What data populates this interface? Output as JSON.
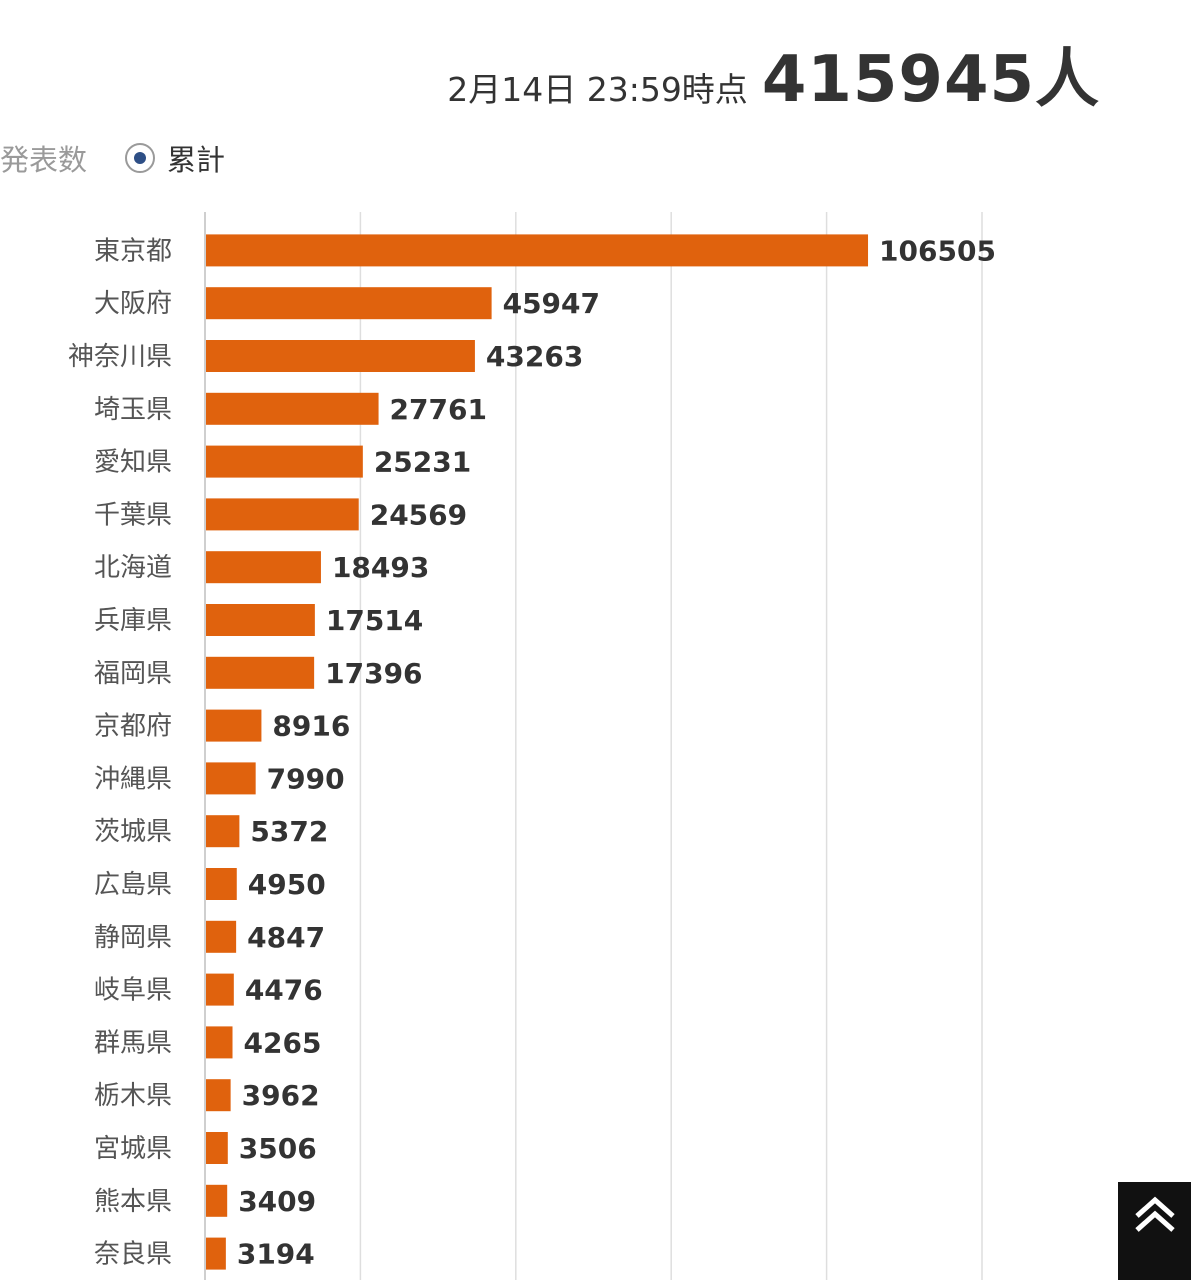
{
  "header": {
    "as_of": "2月14日 23:59時点",
    "total": "415945人"
  },
  "mode_toggle": {
    "option_announced": "発表数",
    "option_cumulative": "累計",
    "selected": "累計"
  },
  "colors": {
    "bar": "#e0620d",
    "grid": "#dedede",
    "text": "#333333"
  },
  "chart_data": {
    "type": "bar",
    "orientation": "horizontal",
    "categories": [
      "東京都",
      "大阪府",
      "神奈川県",
      "埼玉県",
      "愛知県",
      "千葉県",
      "北海道",
      "兵庫県",
      "福岡県",
      "京都府",
      "沖縄県",
      "茨城県",
      "広島県",
      "静岡県",
      "岐阜県",
      "群馬県",
      "栃木県",
      "宮城県",
      "熊本県",
      "奈良県"
    ],
    "values": [
      106505,
      45947,
      43263,
      27761,
      25231,
      24569,
      18493,
      17514,
      17396,
      8916,
      7990,
      5372,
      4950,
      4847,
      4476,
      4265,
      3962,
      3506,
      3409,
      3194
    ],
    "xlim": [
      0,
      125000
    ],
    "gridline_step": 25000,
    "grid": true,
    "data_labels": true,
    "legend": "none"
  },
  "scroll_top_icon": "double-chevron-up-icon"
}
